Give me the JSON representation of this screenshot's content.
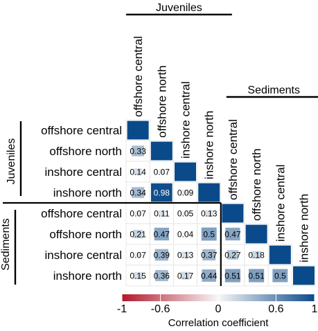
{
  "chart_data": {
    "type": "heatmap",
    "subtype": "lower-triangle correlation matrix",
    "labels": [
      "offshore central",
      "offshore north",
      "inshore central",
      "inshore north",
      "offshore central",
      "offshore north",
      "inshore central",
      "inshore north"
    ],
    "groups": [
      {
        "name": "Juveniles",
        "start": 0,
        "count": 4
      },
      {
        "name": "Sediments",
        "start": 4,
        "count": 4
      }
    ],
    "matrix": [
      [
        1
      ],
      [
        0.33,
        1
      ],
      [
        0.14,
        0.07,
        1
      ],
      [
        0.34,
        0.98,
        0.09,
        1
      ],
      [
        0.07,
        0.11,
        0.05,
        0.13,
        1
      ],
      [
        0.21,
        0.47,
        0.04,
        0.5,
        0.47,
        1
      ],
      [
        0.07,
        0.39,
        0.13,
        0.37,
        0.27,
        0.18,
        1
      ],
      [
        0.15,
        0.36,
        0.17,
        0.44,
        0.51,
        0.51,
        0.5,
        1
      ]
    ],
    "color_scale": {
      "min": -1,
      "max": 1,
      "low_color": "#b2182b",
      "mid_color": "#f7f7f7",
      "high_color": "#0b4a8a",
      "dark_text_color": "#ffffff",
      "light_text_color": "#000000"
    },
    "colorbar": {
      "ticks": [
        "-1",
        "-0.6",
        "0",
        "0.6",
        "1"
      ],
      "tick_values": [
        -1,
        -0.6,
        0,
        0.6,
        1
      ],
      "title": "Correlation coefficient"
    },
    "diagonal_shown_as_label": false,
    "grid_color": "#d9d9d9"
  }
}
